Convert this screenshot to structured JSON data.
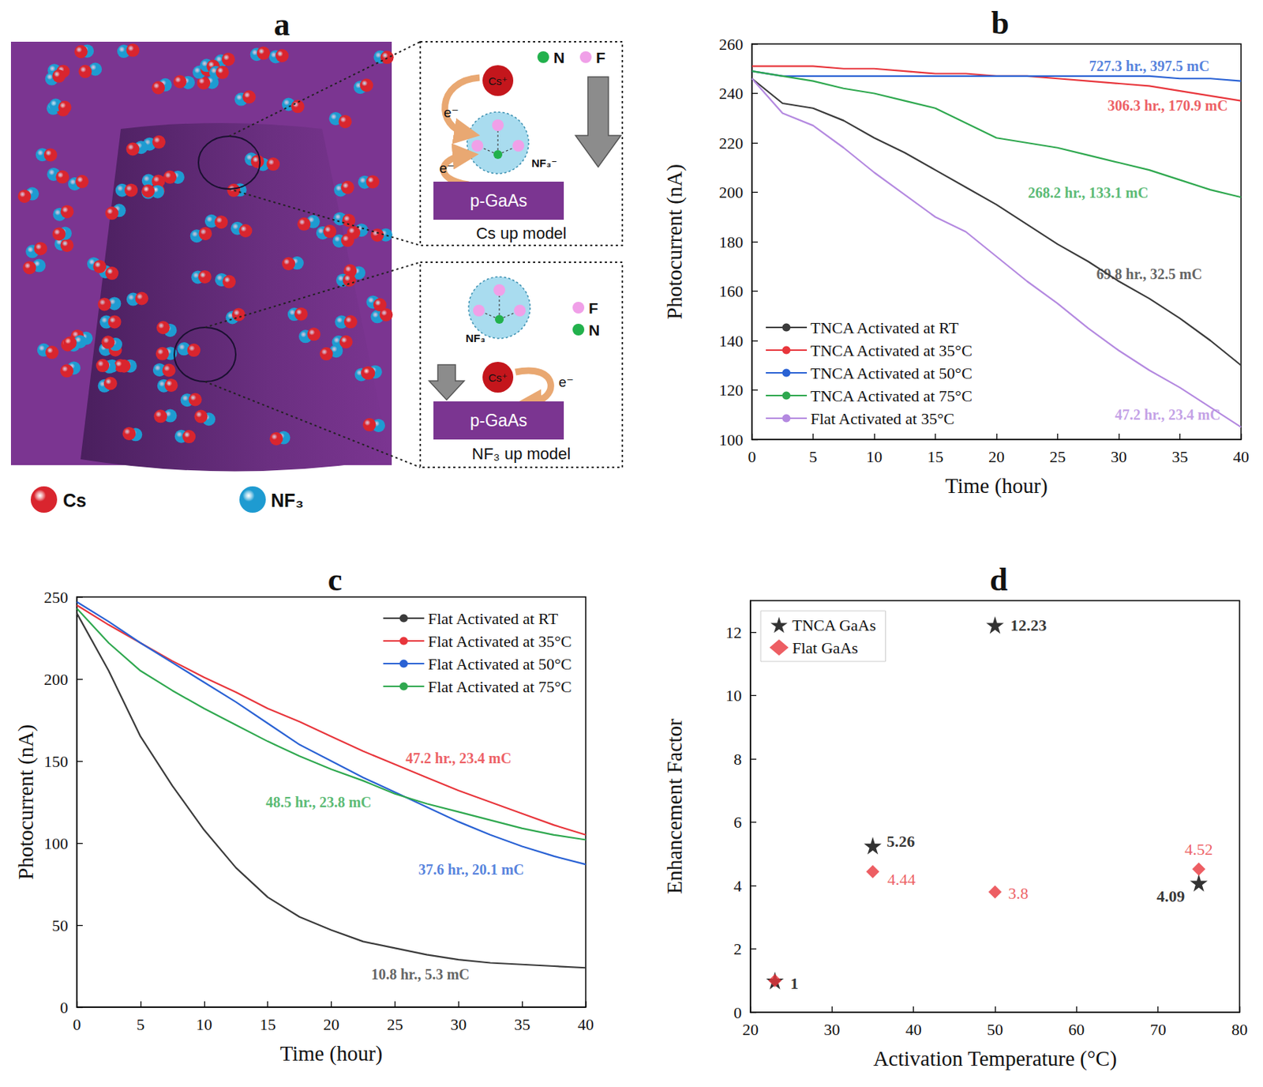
{
  "chart_data": [
    {
      "type": "line",
      "panel": "b",
      "x_label": "Time (hour)",
      "y_label": "Photocurrent (nA)",
      "x": [
        0,
        2.5,
        5,
        7.5,
        10,
        12.5,
        15,
        17.5,
        20,
        22.5,
        25,
        27.5,
        30,
        32.5,
        35,
        37.5,
        40
      ],
      "series": [
        {
          "name": "TNCA Activated at RT",
          "color": "#3b3b3b",
          "values": [
            246,
            236,
            234,
            229,
            222,
            216,
            209,
            202,
            195,
            187,
            179,
            172,
            164,
            157,
            149,
            140,
            130
          ]
        },
        {
          "name": "TNCA Activated at 35°C",
          "color": "#e8363c",
          "values": [
            251,
            251,
            251,
            250,
            250,
            249,
            248,
            248,
            247,
            247,
            246,
            245,
            244,
            243,
            241,
            239,
            237
          ]
        },
        {
          "name": "TNCA Activated at 50°C",
          "color": "#2a62d4",
          "values": [
            249,
            247,
            247,
            247,
            247,
            247,
            247,
            247,
            247,
            247,
            247,
            247,
            247,
            247,
            246,
            246,
            245
          ]
        },
        {
          "name": "TNCA Activated at 75°C",
          "color": "#2fa84f",
          "values": [
            249,
            247,
            245,
            242,
            240,
            237,
            234,
            228,
            222,
            220,
            218,
            215,
            212,
            209,
            205,
            201,
            198
          ]
        },
        {
          "name": "Flat Activated at 35°C",
          "color": "#b489e0",
          "values": [
            246,
            232,
            227,
            218,
            208,
            199,
            190,
            184,
            174,
            164,
            155,
            145,
            136,
            128,
            121,
            113,
            105
          ]
        }
      ],
      "annotations": [
        {
          "text": "727.3 hr., 397.5 mC",
          "x": 32.5,
          "y": 251,
          "color": "#2a62d4"
        },
        {
          "text": "306.3 hr., 170.9 mC",
          "x": 34,
          "y": 235,
          "color": "#e8363c"
        },
        {
          "text": "268.2 hr., 133.1 mC",
          "x": 27.5,
          "y": 200,
          "color": "#2fa84f"
        },
        {
          "text": "69.8 hr., 32.5 mC",
          "x": 32.5,
          "y": 167,
          "color": "#3b3b3b"
        },
        {
          "text": "47.2 hr., 23.4 mC",
          "x": 34,
          "y": 110,
          "color": "#b489e0"
        }
      ],
      "xlim": [
        0,
        40
      ],
      "xticks": [
        0,
        5,
        10,
        15,
        20,
        25,
        30,
        35,
        40
      ],
      "ylim": [
        100,
        260
      ],
      "yticks": [
        100,
        120,
        140,
        160,
        180,
        200,
        220,
        240,
        260
      ],
      "grid": false,
      "legend": "lower left"
    },
    {
      "type": "line",
      "panel": "c",
      "x_label": "Time (hour)",
      "y_label": "Photocurrent (nA)",
      "x": [
        0,
        2.5,
        5,
        7.5,
        10,
        12.5,
        15,
        17.5,
        20,
        22.5,
        25,
        27.5,
        30,
        32.5,
        35,
        37.5,
        40
      ],
      "series": [
        {
          "name": "Flat Activated at RT",
          "color": "#3b3b3b",
          "values": [
            240,
            205,
            165,
            135,
            108,
            85,
            67,
            55,
            47,
            40,
            36,
            32,
            29,
            27,
            26,
            25,
            24
          ]
        },
        {
          "name": "Flat Activated at 35°C",
          "color": "#e8363c",
          "values": [
            245,
            233,
            222,
            211,
            201,
            192,
            182,
            174,
            165,
            156,
            148,
            140,
            132,
            125,
            118,
            111,
            105
          ]
        },
        {
          "name": "Flat Activated at 50°C",
          "color": "#2a62d4",
          "values": [
            247,
            235,
            222,
            210,
            198,
            186,
            173,
            160,
            150,
            140,
            131,
            122,
            113,
            105,
            98,
            92,
            87
          ]
        },
        {
          "name": "Flat Activated at 75°C",
          "color": "#2fa84f",
          "values": [
            243,
            222,
            205,
            193,
            182,
            172,
            162,
            153,
            145,
            138,
            130,
            124,
            119,
            114,
            109,
            105,
            102
          ]
        }
      ],
      "annotations": [
        {
          "text": "47.2 hr., 23.4 mC",
          "x": 30,
          "y": 152,
          "color": "#e8363c"
        },
        {
          "text": "48.5 hr., 23.8 mC",
          "x": 19,
          "y": 125,
          "color": "#2fa84f"
        },
        {
          "text": "37.6 hr., 20.1 mC",
          "x": 31,
          "y": 84,
          "color": "#2a62d4"
        },
        {
          "text": "10.8 hr., 5.3 mC",
          "x": 27,
          "y": 20,
          "color": "#3b3b3b"
        }
      ],
      "xlim": [
        0,
        40
      ],
      "xticks": [
        0,
        5,
        10,
        15,
        20,
        25,
        30,
        35,
        40
      ],
      "ylim": [
        0,
        250
      ],
      "yticks": [
        0,
        50,
        100,
        150,
        200,
        250
      ],
      "grid": false,
      "legend": "upper right"
    },
    {
      "type": "scatter",
      "panel": "d",
      "x_label": "Activation Temperature (°C)",
      "y_label": "Enhancement Factor",
      "x": [
        23,
        35,
        50,
        75
      ],
      "series": [
        {
          "name": "TNCA GaAs",
          "color": "#000000",
          "marker": "star",
          "values": [
            1,
            5.26,
            12.23,
            4.09
          ],
          "value_labels": [
            "1",
            "5.26",
            "12.23",
            "4.09"
          ]
        },
        {
          "name": "Flat GaAs",
          "color": "#e8363c",
          "marker": "diamond",
          "values": [
            1,
            4.44,
            3.8,
            4.52
          ],
          "value_labels": [
            null,
            "4.44",
            "3.8",
            "4.52"
          ]
        }
      ],
      "xlim": [
        20,
        80
      ],
      "xticks": [
        20,
        30,
        40,
        50,
        60,
        70,
        80
      ],
      "ylim": [
        0,
        13
      ],
      "yticks": [
        0,
        2,
        4,
        6,
        8,
        10,
        12
      ],
      "grid": false,
      "legend": "upper left",
      "data_labels": true
    }
  ],
  "diagram": {
    "panel": "a",
    "legend": [
      {
        "label": "Cs",
        "color": "#d9252e"
      },
      {
        "label": "NF₃",
        "color": "#1e9bd1"
      }
    ],
    "insets": [
      {
        "title": "Cs up model",
        "substrate": "p-GaAs",
        "ion": "Cs⁺",
        "electron": "e⁻",
        "molecule": "NF₃⁻",
        "atoms": [
          {
            "label": "N",
            "color": "#22b14c"
          },
          {
            "label": "F",
            "color": "#f0a0e8"
          }
        ]
      },
      {
        "title": "NF₃ up model",
        "substrate": "p-GaAs",
        "ion": "Cs⁺",
        "electron": "e⁻",
        "molecule": "NF₃",
        "atoms": [
          {
            "label": "F",
            "color": "#f0a0e8"
          },
          {
            "label": "N",
            "color": "#22b14c"
          }
        ]
      }
    ]
  }
}
